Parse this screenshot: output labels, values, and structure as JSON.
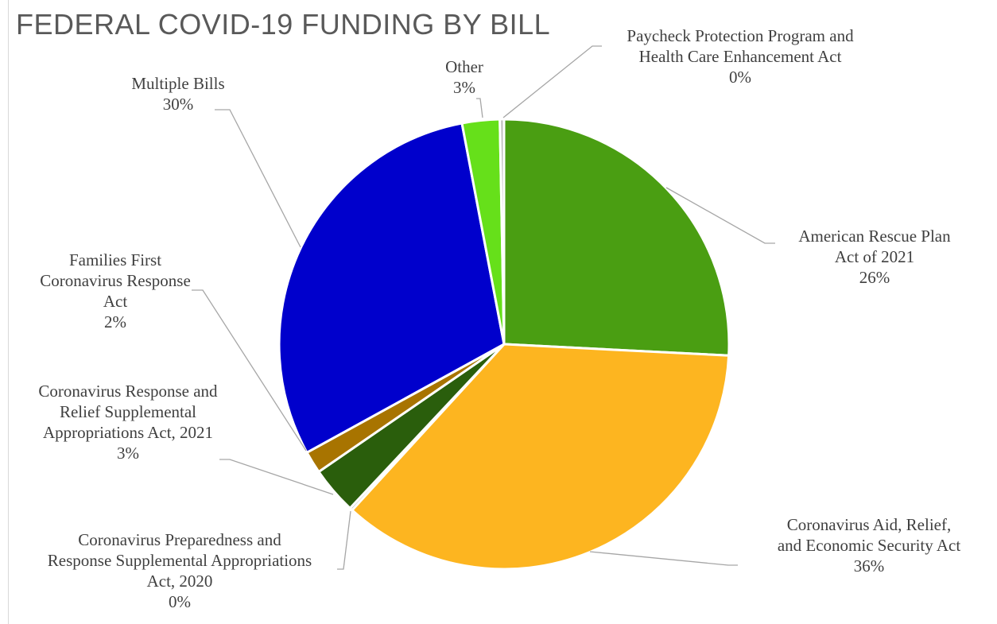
{
  "chart_data": {
    "type": "pie",
    "title": "FEDERAL COVID-19 FUNDING BY BILL",
    "slices": [
      {
        "label_lines": [
          "American Rescue Plan",
          "Act of 2021"
        ],
        "percent_label": "26%",
        "value": 25.8,
        "color": "#4a9e12"
      },
      {
        "label_lines": [
          "Coronavirus Aid, Relief,",
          "and Economic Security Act"
        ],
        "percent_label": "36%",
        "value": 36.0,
        "color": "#fdb520"
      },
      {
        "label_lines": [
          "Coronavirus Preparedness and",
          "Response Supplemental Appropriations",
          "Act, 2020"
        ],
        "percent_label": "0%",
        "value": 0.2,
        "color": "#a6a6a6"
      },
      {
        "label_lines": [
          "Coronavirus Response and",
          "Relief Supplemental",
          "Appropriations Act, 2021"
        ],
        "percent_label": "3%",
        "value": 3.4,
        "color": "#2a5e0c"
      },
      {
        "label_lines": [
          "Families First",
          "Coronavirus Response",
          "Act"
        ],
        "percent_label": "2%",
        "value": 1.6,
        "color": "#a87400"
      },
      {
        "label_lines": [
          "Multiple Bills"
        ],
        "percent_label": "30%",
        "value": 30.0,
        "color": "#0000cc"
      },
      {
        "label_lines": [
          "Other"
        ],
        "percent_label": "3%",
        "value": 2.7,
        "color": "#66e01a"
      },
      {
        "label_lines": [
          "Paycheck Protection Program and",
          "Health Care Enhancement Act"
        ],
        "percent_label": "0%",
        "value": 0.3,
        "color": "#bfbfbf"
      }
    ]
  }
}
